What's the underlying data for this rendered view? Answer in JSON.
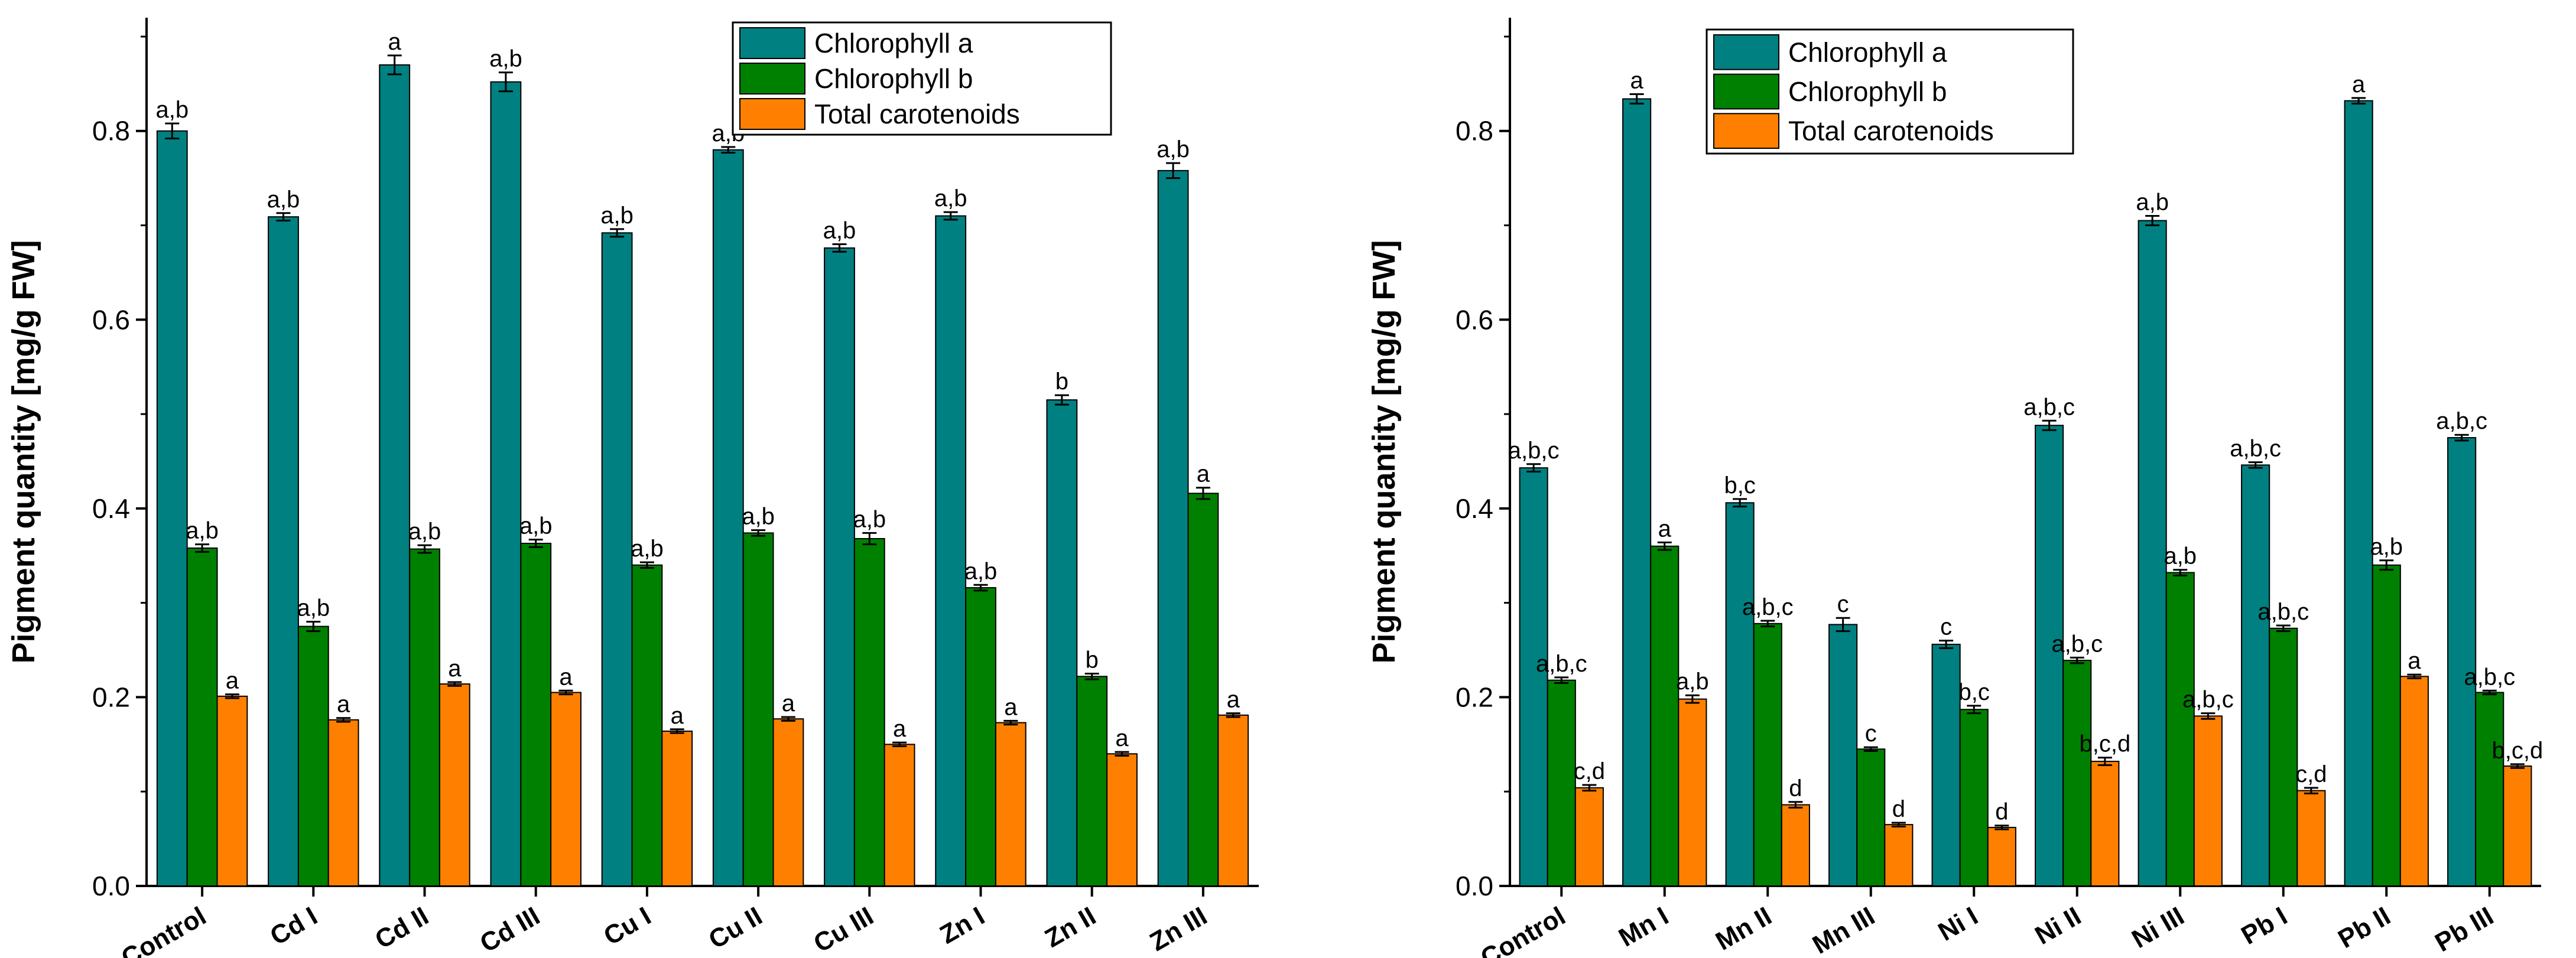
{
  "colors": {
    "chl_a": "#008080",
    "chl_b": "#008000",
    "carot": "#ff8000",
    "axis": "#000000"
  },
  "chart_data": [
    {
      "type": "bar",
      "ylabel": "Pigment quantity [mg/g FW]",
      "ylim": [
        0,
        0.92
      ],
      "yticks": [
        "0.0",
        "0.2",
        "0.4",
        "0.6",
        "0.8"
      ],
      "ytick_values": [
        0,
        0.2,
        0.4,
        0.6,
        0.8
      ],
      "legend_position": "top-right",
      "categories": [
        "Control",
        "Cd I",
        "Cd II",
        "Cd III",
        "Cu I",
        "Cu II",
        "Cu III",
        "Zn I",
        "Zn II",
        "Zn III"
      ],
      "series": [
        {
          "name": "Chlorophyll a",
          "color_key": "chl_a",
          "values": [
            0.8,
            0.709,
            0.87,
            0.852,
            0.692,
            0.78,
            0.676,
            0.71,
            0.515,
            0.758
          ],
          "errors": [
            0.008,
            0.004,
            0.01,
            0.01,
            0.004,
            0.003,
            0.004,
            0.004,
            0.005,
            0.008
          ],
          "labels": [
            "a,b",
            "a,b",
            "a",
            "a,b",
            "a,b",
            "a,b",
            "a,b",
            "a,b",
            "b",
            "a,b"
          ]
        },
        {
          "name": "Chlorophyll b",
          "color_key": "chl_b",
          "values": [
            0.358,
            0.275,
            0.357,
            0.363,
            0.34,
            0.374,
            0.368,
            0.316,
            0.222,
            0.416
          ],
          "errors": [
            0.004,
            0.005,
            0.004,
            0.004,
            0.003,
            0.003,
            0.006,
            0.003,
            0.003,
            0.006
          ],
          "labels": [
            "a,b",
            "a,b",
            "a,b",
            "a,b",
            "a,b",
            "a,b",
            "a,b",
            "a,b",
            "b",
            "a"
          ]
        },
        {
          "name": "Total carotenoids",
          "color_key": "carot",
          "values": [
            0.201,
            0.176,
            0.214,
            0.205,
            0.164,
            0.177,
            0.15,
            0.173,
            0.14,
            0.181
          ],
          "errors": [
            0.002,
            0.002,
            0.002,
            0.002,
            0.002,
            0.002,
            0.002,
            0.002,
            0.002,
            0.002
          ],
          "labels": [
            "a",
            "a",
            "a",
            "a",
            "a",
            "a",
            "a",
            "a",
            "a",
            "a"
          ]
        }
      ]
    },
    {
      "type": "bar",
      "ylabel": "Pigment quantity [mg/g FW]",
      "ylim": [
        0,
        0.92
      ],
      "yticks": [
        "0.0",
        "0.2",
        "0.4",
        "0.6",
        "0.8"
      ],
      "ytick_values": [
        0,
        0.2,
        0.4,
        0.6,
        0.8
      ],
      "legend_position": "top-left",
      "categories": [
        "Control",
        "Mn I",
        "Mn II",
        "Mn III",
        "Ni I",
        "Ni II",
        "Ni III",
        "Pb I",
        "Pb II",
        "Pb III"
      ],
      "series": [
        {
          "name": "Chlorophyll a",
          "color_key": "chl_a",
          "values": [
            0.443,
            0.834,
            0.406,
            0.277,
            0.256,
            0.488,
            0.705,
            0.446,
            0.832,
            0.475
          ],
          "errors": [
            0.004,
            0.005,
            0.004,
            0.007,
            0.004,
            0.005,
            0.005,
            0.003,
            0.003,
            0.003
          ],
          "labels": [
            "a,b,c",
            "a",
            "b,c",
            "c",
            "c",
            "a,b,c",
            "a,b",
            "a,b,c",
            "a",
            "a,b,c"
          ]
        },
        {
          "name": "Chlorophyll b",
          "color_key": "chl_b",
          "values": [
            0.218,
            0.36,
            0.278,
            0.145,
            0.187,
            0.239,
            0.332,
            0.273,
            0.34,
            0.205
          ],
          "errors": [
            0.003,
            0.004,
            0.003,
            0.002,
            0.004,
            0.003,
            0.003,
            0.003,
            0.005,
            0.002
          ],
          "labels": [
            "a,b,c",
            "a",
            "a,b,c",
            "c",
            "b,c",
            "a,b,c",
            "a,b",
            "a,b,c",
            "a,b",
            "a,b,c"
          ]
        },
        {
          "name": "Total carotenoids",
          "color_key": "carot",
          "values": [
            0.104,
            0.198,
            0.086,
            0.065,
            0.062,
            0.132,
            0.18,
            0.101,
            0.222,
            0.127
          ],
          "errors": [
            0.003,
            0.004,
            0.003,
            0.002,
            0.002,
            0.004,
            0.003,
            0.003,
            0.002,
            0.002
          ],
          "labels": [
            "c,d",
            "a,b",
            "d",
            "d",
            "d",
            "b,c,d",
            "a,b,c",
            "c,d",
            "a",
            "b,c,d"
          ]
        }
      ]
    }
  ]
}
